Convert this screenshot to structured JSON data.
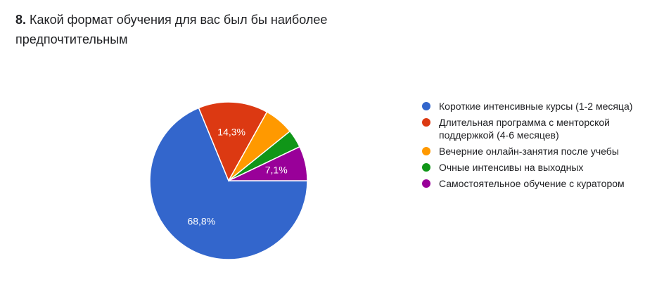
{
  "question": {
    "number": "8.",
    "text": "Какой формат обучения для вас был бы наиболее предпочтительным"
  },
  "chart_data": {
    "type": "pie",
    "categories": [
      "Короткие интенсивные курсы (1-2 месяца)",
      "Длительная программа с менторской поддержкой (4-6 месяцев)",
      "Вечерние онлайн-занятия после учебы",
      "Очные интенсивы на выходных",
      "Самостоятельное обучение с куратором"
    ],
    "values": [
      68.8,
      14.3,
      6.1,
      3.7,
      7.1
    ],
    "data_labels": [
      "68,8%",
      "14,3%",
      "",
      "",
      "7,1%"
    ],
    "colors": [
      "#3366cc",
      "#dc3912",
      "#ff9900",
      "#109618",
      "#990099"
    ],
    "start_angle_deg": 90,
    "direction": "clockwise",
    "legend_position": "right"
  }
}
